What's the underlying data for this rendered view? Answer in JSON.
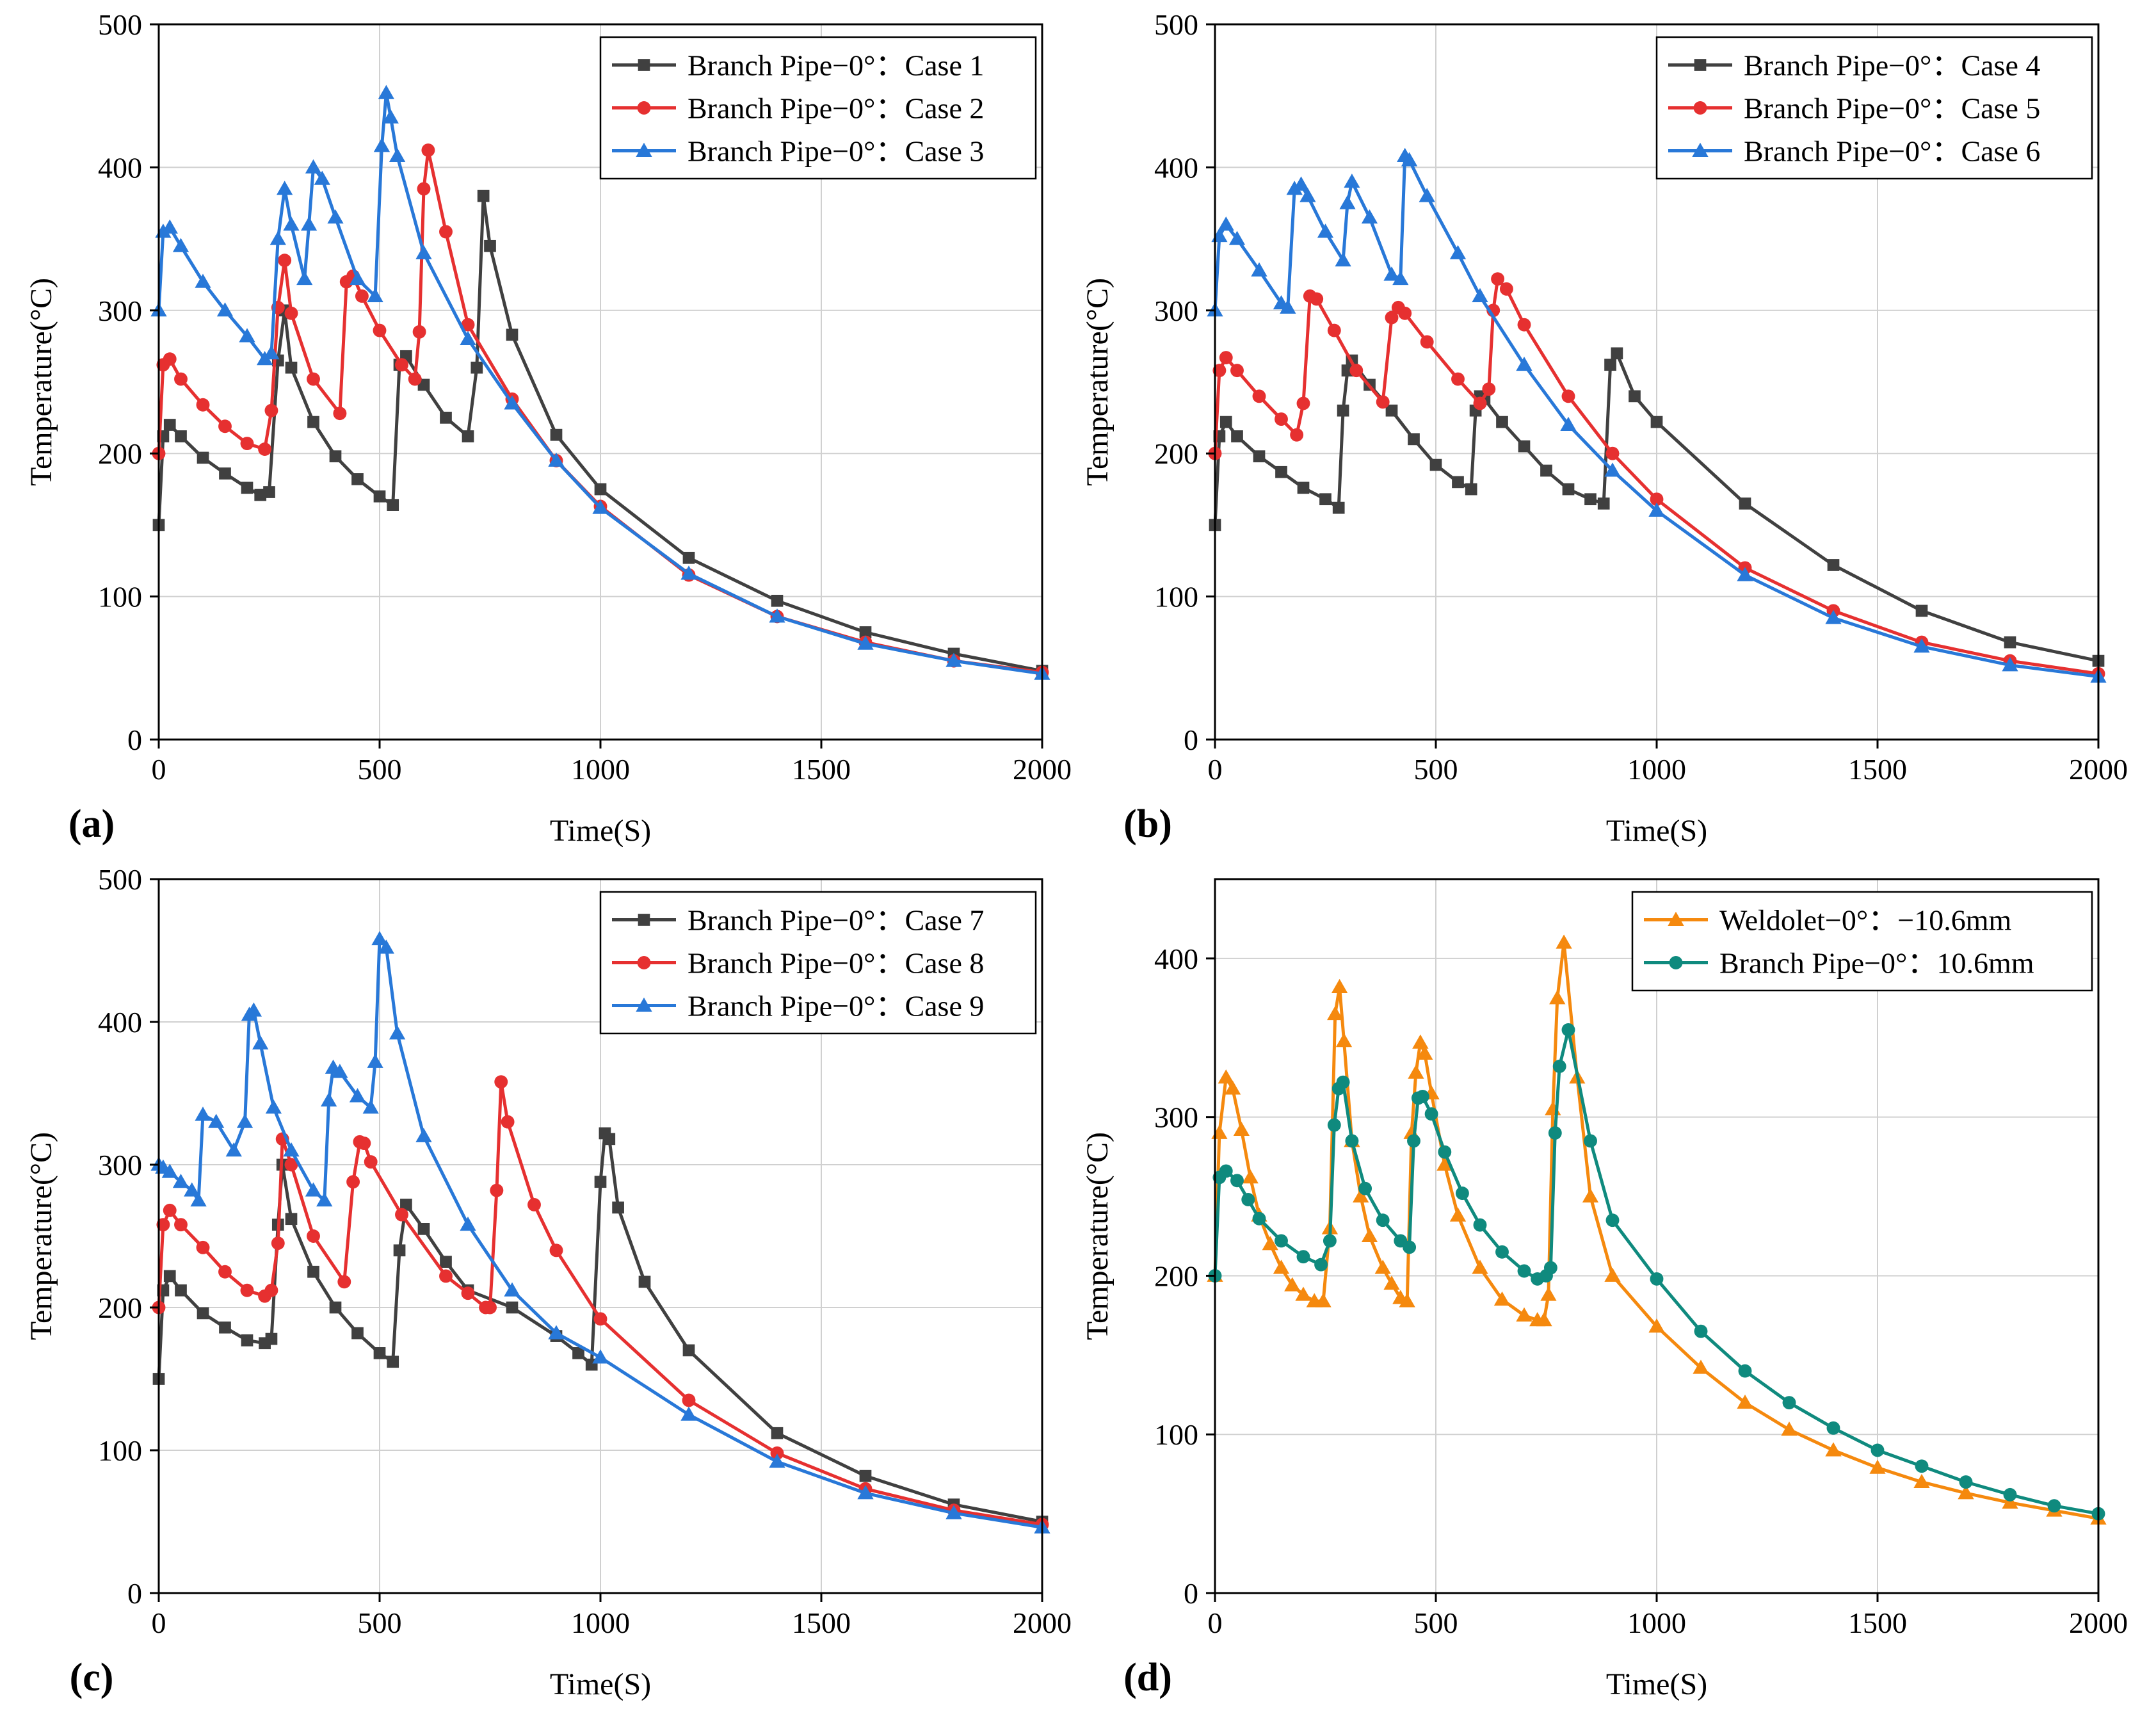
{
  "chart_data": [
    {
      "panel_label": "(a)",
      "type": "line",
      "xlabel": "Time(S)",
      "ylabel": "Temperature(°C)",
      "xlim": [
        0,
        2000
      ],
      "ylim": [
        0,
        500
      ],
      "xticks": [
        "0",
        "500",
        "1000",
        "1500",
        "2000"
      ],
      "yticks": [
        "0",
        "100",
        "200",
        "300",
        "400",
        "500"
      ],
      "grid": true,
      "legend_position": "top-right",
      "series": [
        {
          "name": "Branch Pipe−0°：Case 1",
          "color": "#404040",
          "marker": "square",
          "x": [
            0,
            10,
            25,
            50,
            100,
            150,
            200,
            230,
            250,
            270,
            285,
            300,
            350,
            400,
            450,
            500,
            530,
            545,
            560,
            600,
            650,
            700,
            720,
            735,
            750,
            800,
            900,
            1000,
            1200,
            1400,
            1600,
            1800,
            2000
          ],
          "y": [
            150,
            212,
            220,
            212,
            197,
            186,
            176,
            171,
            173,
            265,
            300,
            260,
            222,
            198,
            182,
            170,
            164,
            262,
            268,
            248,
            225,
            212,
            260,
            380,
            345,
            283,
            213,
            175,
            127,
            97,
            75,
            60,
            48
          ]
        },
        {
          "name": "Branch Pipe−0°：Case 2",
          "color": "#E63030",
          "marker": "circle",
          "x": [
            0,
            10,
            25,
            50,
            100,
            150,
            200,
            240,
            255,
            270,
            285,
            300,
            350,
            410,
            425,
            440,
            460,
            500,
            550,
            580,
            590,
            600,
            610,
            650,
            700,
            800,
            900,
            1000,
            1200,
            1400,
            1600,
            1800,
            2000
          ],
          "y": [
            200,
            262,
            266,
            252,
            234,
            219,
            207,
            203,
            230,
            302,
            335,
            298,
            252,
            228,
            320,
            324,
            310,
            286,
            262,
            252,
            285,
            385,
            412,
            355,
            290,
            238,
            195,
            163,
            115,
            86,
            68,
            55,
            47
          ]
        },
        {
          "name": "Branch Pipe−0°：Case 3",
          "color": "#2878D8",
          "marker": "triangle",
          "x": [
            0,
            10,
            25,
            50,
            100,
            150,
            200,
            240,
            255,
            270,
            285,
            300,
            330,
            340,
            350,
            370,
            400,
            450,
            490,
            505,
            515,
            525,
            540,
            600,
            700,
            800,
            900,
            1000,
            1200,
            1400,
            1600,
            1800,
            2000
          ],
          "y": [
            300,
            355,
            358,
            345,
            320,
            300,
            282,
            266,
            270,
            350,
            385,
            360,
            322,
            360,
            400,
            392,
            365,
            322,
            310,
            415,
            452,
            435,
            408,
            340,
            280,
            235,
            195,
            162,
            116,
            86,
            67,
            55,
            46
          ]
        }
      ]
    },
    {
      "panel_label": "(b)",
      "type": "line",
      "xlabel": "Time(S)",
      "ylabel": "Temperature(°C)",
      "xlim": [
        0,
        2000
      ],
      "ylim": [
        0,
        500
      ],
      "xticks": [
        "0",
        "500",
        "1000",
        "1500",
        "2000"
      ],
      "yticks": [
        "0",
        "100",
        "200",
        "300",
        "400",
        "500"
      ],
      "grid": true,
      "legend_position": "top-right",
      "series": [
        {
          "name": "Branch Pipe−0°：Case 4",
          "color": "#404040",
          "marker": "square",
          "x": [
            0,
            10,
            25,
            50,
            100,
            150,
            200,
            250,
            280,
            290,
            300,
            310,
            350,
            400,
            450,
            500,
            550,
            580,
            590,
            600,
            610,
            650,
            700,
            750,
            800,
            850,
            880,
            895,
            910,
            950,
            1000,
            1200,
            1400,
            1600,
            1800,
            2000
          ],
          "y": [
            150,
            212,
            222,
            212,
            198,
            187,
            176,
            168,
            162,
            230,
            258,
            265,
            248,
            230,
            210,
            192,
            180,
            175,
            230,
            240,
            238,
            222,
            205,
            188,
            175,
            168,
            165,
            262,
            270,
            240,
            222,
            165,
            122,
            90,
            68,
            55
          ]
        },
        {
          "name": "Branch Pipe−0°：Case 5",
          "color": "#E63030",
          "marker": "circle",
          "x": [
            0,
            10,
            25,
            50,
            100,
            150,
            185,
            200,
            215,
            230,
            270,
            320,
            380,
            400,
            415,
            430,
            480,
            550,
            600,
            620,
            630,
            640,
            660,
            700,
            800,
            900,
            1000,
            1200,
            1400,
            1600,
            1800,
            2000
          ],
          "y": [
            200,
            258,
            267,
            258,
            240,
            224,
            213,
            235,
            310,
            308,
            286,
            258,
            236,
            295,
            302,
            298,
            278,
            252,
            235,
            245,
            300,
            322,
            315,
            290,
            240,
            200,
            168,
            120,
            90,
            68,
            55,
            46
          ]
        },
        {
          "name": "Branch Pipe−0°：Case 6",
          "color": "#2878D8",
          "marker": "triangle",
          "x": [
            0,
            10,
            25,
            50,
            100,
            150,
            165,
            180,
            195,
            210,
            250,
            290,
            300,
            310,
            350,
            400,
            420,
            430,
            440,
            480,
            550,
            600,
            700,
            800,
            900,
            1000,
            1200,
            1400,
            1600,
            1800,
            2000
          ],
          "y": [
            300,
            352,
            360,
            350,
            328,
            305,
            302,
            385,
            388,
            380,
            355,
            335,
            375,
            390,
            365,
            325,
            322,
            408,
            405,
            380,
            340,
            310,
            262,
            220,
            188,
            160,
            115,
            85,
            65,
            52,
            44
          ]
        }
      ]
    },
    {
      "panel_label": "(c)",
      "type": "line",
      "xlabel": "Time(S)",
      "ylabel": "Temperature(°C)",
      "xlim": [
        0,
        2000
      ],
      "ylim": [
        0,
        500
      ],
      "xticks": [
        "0",
        "500",
        "1000",
        "1500",
        "2000"
      ],
      "yticks": [
        "0",
        "100",
        "200",
        "300",
        "400",
        "500"
      ],
      "grid": true,
      "legend_position": "top-right",
      "series": [
        {
          "name": "Branch Pipe−0°：Case 7",
          "color": "#404040",
          "marker": "square",
          "x": [
            0,
            10,
            25,
            50,
            100,
            150,
            200,
            240,
            255,
            270,
            280,
            300,
            350,
            400,
            450,
            500,
            530,
            545,
            560,
            600,
            650,
            700,
            800,
            900,
            950,
            980,
            1000,
            1010,
            1020,
            1040,
            1100,
            1200,
            1400,
            1600,
            1800,
            2000
          ],
          "y": [
            150,
            212,
            222,
            212,
            196,
            186,
            177,
            175,
            178,
            258,
            300,
            262,
            225,
            200,
            182,
            168,
            162,
            240,
            272,
            255,
            232,
            212,
            200,
            180,
            168,
            160,
            288,
            322,
            318,
            270,
            218,
            170,
            112,
            82,
            62,
            50
          ]
        },
        {
          "name": "Branch Pipe−0°：Case 8",
          "color": "#E63030",
          "marker": "circle",
          "x": [
            0,
            10,
            25,
            50,
            100,
            150,
            200,
            240,
            255,
            270,
            280,
            300,
            350,
            420,
            440,
            455,
            465,
            480,
            550,
            650,
            700,
            740,
            750,
            765,
            775,
            790,
            850,
            900,
            1000,
            1200,
            1400,
            1600,
            1800,
            2000
          ],
          "y": [
            200,
            258,
            268,
            258,
            242,
            225,
            212,
            208,
            212,
            245,
            318,
            300,
            250,
            218,
            288,
            316,
            315,
            302,
            265,
            222,
            210,
            200,
            200,
            282,
            358,
            330,
            272,
            240,
            192,
            135,
            98,
            73,
            58,
            48
          ]
        },
        {
          "name": "Branch Pipe−0°：Case 9",
          "color": "#2878D8",
          "marker": "triangle",
          "x": [
            0,
            10,
            25,
            50,
            75,
            90,
            100,
            130,
            170,
            195,
            205,
            215,
            230,
            260,
            300,
            350,
            375,
            385,
            395,
            410,
            450,
            480,
            490,
            500,
            515,
            540,
            600,
            700,
            800,
            900,
            1000,
            1200,
            1400,
            1600,
            1800,
            2000
          ],
          "y": [
            300,
            298,
            295,
            288,
            282,
            275,
            335,
            330,
            310,
            330,
            405,
            408,
            385,
            340,
            310,
            282,
            275,
            345,
            368,
            365,
            348,
            340,
            372,
            458,
            452,
            392,
            320,
            258,
            212,
            182,
            165,
            125,
            92,
            70,
            56,
            46
          ]
        }
      ]
    },
    {
      "panel_label": "(d)",
      "type": "line",
      "xlabel": "Time(S)",
      "ylabel": "Temperature(°C)",
      "xlim": [
        0,
        2000
      ],
      "ylim": [
        0,
        450
      ],
      "xticks": [
        "0",
        "500",
        "1000",
        "1500",
        "2000"
      ],
      "yticks": [
        "0",
        "100",
        "200",
        "300",
        "400"
      ],
      "grid": true,
      "legend_position": "top-right",
      "series": [
        {
          "name": "Weldolet−0°：−10.6mm",
          "color": "#F5890E",
          "marker": "triangle",
          "x": [
            0,
            10,
            25,
            40,
            60,
            80,
            100,
            125,
            150,
            175,
            200,
            225,
            245,
            260,
            272,
            282,
            292,
            310,
            330,
            350,
            380,
            400,
            420,
            435,
            445,
            455,
            465,
            475,
            490,
            520,
            550,
            600,
            650,
            700,
            730,
            745,
            755,
            765,
            775,
            790,
            820,
            850,
            900,
            1000,
            1100,
            1200,
            1300,
            1400,
            1500,
            1600,
            1700,
            1800,
            1900,
            2000
          ],
          "y": [
            200,
            290,
            325,
            318,
            292,
            262,
            238,
            220,
            205,
            194,
            188,
            184,
            184,
            230,
            365,
            382,
            348,
            285,
            250,
            225,
            205,
            195,
            186,
            184,
            290,
            328,
            347,
            340,
            315,
            270,
            238,
            205,
            185,
            175,
            172,
            172,
            188,
            305,
            375,
            410,
            325,
            250,
            200,
            168,
            142,
            120,
            103,
            90,
            79,
            70,
            63,
            57,
            52,
            47
          ]
        },
        {
          "name": "Branch Pipe−0°：10.6mm",
          "color": "#0F8A7E",
          "marker": "circle",
          "x": [
            0,
            10,
            25,
            50,
            75,
            100,
            150,
            200,
            240,
            260,
            270,
            280,
            290,
            310,
            340,
            380,
            420,
            440,
            450,
            460,
            470,
            490,
            520,
            560,
            600,
            650,
            700,
            730,
            750,
            760,
            770,
            780,
            800,
            850,
            900,
            1000,
            1100,
            1200,
            1300,
            1400,
            1500,
            1600,
            1700,
            1800,
            1900,
            2000
          ],
          "y": [
            200,
            262,
            266,
            260,
            248,
            236,
            222,
            212,
            207,
            222,
            295,
            318,
            322,
            285,
            255,
            235,
            222,
            218,
            285,
            312,
            313,
            302,
            278,
            252,
            232,
            215,
            203,
            198,
            200,
            205,
            290,
            332,
            355,
            285,
            235,
            198,
            165,
            140,
            120,
            104,
            90,
            80,
            70,
            62,
            55,
            50
          ]
        }
      ]
    }
  ]
}
